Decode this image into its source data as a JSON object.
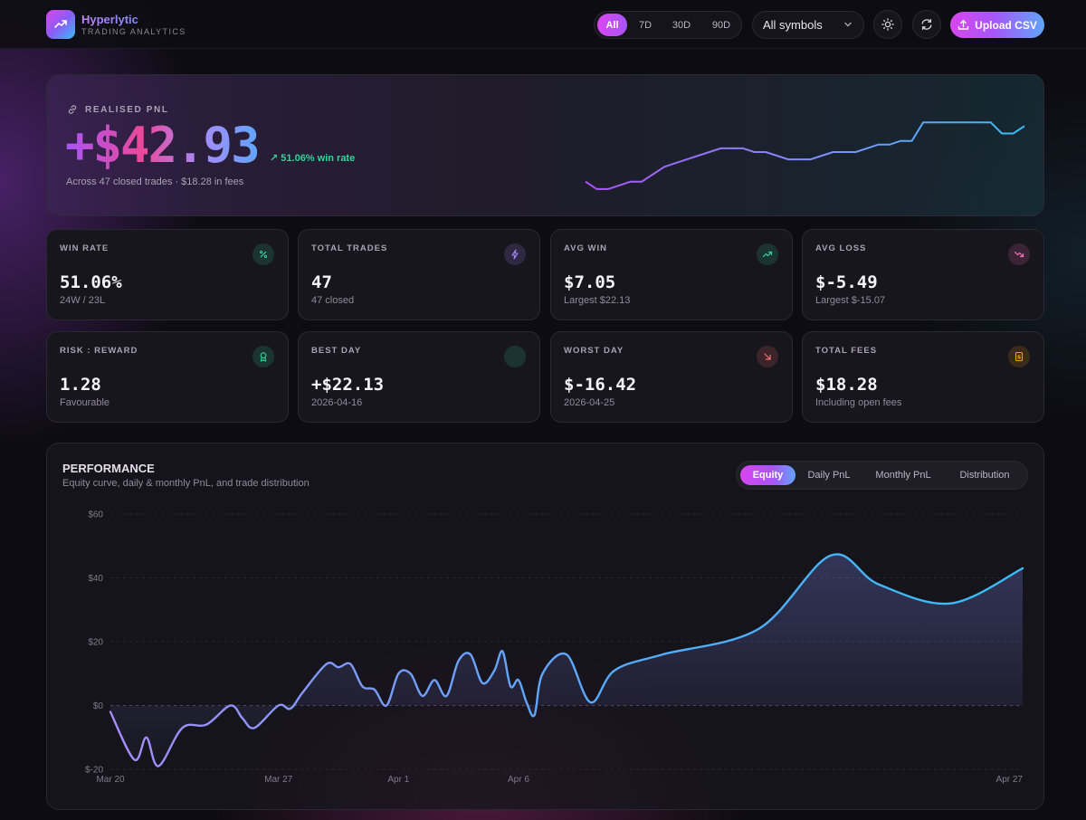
{
  "brand": {
    "name": "Hyperlytic",
    "subtitle": "TRADING ANALYTICS",
    "icon": "trend-up-icon"
  },
  "header": {
    "ranges": [
      "All",
      "7D",
      "30D",
      "90D"
    ],
    "active_range": "All",
    "symbol_select": "All symbols",
    "theme_icon": "sun-icon",
    "refresh_icon": "refresh-icon",
    "upload_label": "Upload CSV",
    "upload_icon": "upload-icon"
  },
  "hero": {
    "label": "REALISED PNL",
    "label_icon": "link-icon",
    "value": "+$42.93",
    "winrate": "51.06% win rate",
    "subtitle": "Across 47 closed trades · $18.28 in fees"
  },
  "stats": [
    {
      "label": "WIN RATE",
      "value": "51.06%",
      "sub": "24W / 23L",
      "icon": "percent-icon",
      "color": "#34d399"
    },
    {
      "label": "TOTAL TRADES",
      "value": "47",
      "sub": "47 closed",
      "icon": "bolt-icon",
      "color": "#a78bfa"
    },
    {
      "label": "AVG WIN",
      "value": "$7.05",
      "sub": "Largest $22.13",
      "icon": "trend-up-icon",
      "color": "#34d399"
    },
    {
      "label": "AVG LOSS",
      "value": "$-5.49",
      "sub": "Largest $-15.07",
      "icon": "trend-down-icon",
      "color": "#f472b6"
    },
    {
      "label": "RISK : REWARD",
      "value": "1.28",
      "sub": "Favourable",
      "icon": "award-icon",
      "color": "#34d399"
    },
    {
      "label": "BEST DAY",
      "value": "+$22.13",
      "sub": "2026-04-16",
      "icon": "flame-icon",
      "color": "#34d399"
    },
    {
      "label": "WORST DAY",
      "value": "$-16.42",
      "sub": "2026-04-25",
      "icon": "arrow-down-right-icon",
      "color": "#f87171"
    },
    {
      "label": "TOTAL FEES",
      "value": "$18.28",
      "sub": "Including open fees",
      "icon": "receipt-icon",
      "color": "#f59e0b"
    }
  ],
  "performance": {
    "title": "PERFORMANCE",
    "subtitle": "Equity curve, daily & monthly PnL, and trade distribution",
    "tabs": [
      "Equity",
      "Daily PnL",
      "Monthly PnL",
      "Distribution"
    ],
    "active_tab": "Equity"
  },
  "chart_data": [
    {
      "type": "line",
      "title": "",
      "values": [
        -5,
        -7,
        -7,
        -6,
        -5,
        -5,
        -3,
        -1,
        0,
        1,
        2,
        3,
        4,
        4,
        4,
        3,
        3,
        2,
        1,
        1,
        1,
        2,
        3,
        3,
        3,
        4,
        5,
        5,
        6,
        6,
        11,
        11,
        11,
        11,
        11,
        11,
        11,
        8,
        8,
        10
      ],
      "ylim": [
        -8,
        13
      ]
    },
    {
      "type": "line",
      "title": "",
      "xlabel": "",
      "ylabel": "",
      "xlim": [
        "Mar 20",
        "Apr 27"
      ],
      "ylim": [
        -20,
        60
      ],
      "x_ticks": [
        "Mar 20",
        "Mar 27",
        "Apr 1",
        "Apr 6",
        "Apr 27"
      ],
      "y_ticks": [
        "$60",
        "$40",
        "$20",
        "$0",
        "$-20"
      ],
      "series": [
        {
          "values": [
            {
              "x": "2026-03-20",
              "y": -2
            },
            {
              "x": "2026-03-21",
              "y": -17
            },
            {
              "x": "2026-03-21",
              "y": -10
            },
            {
              "x": "2026-03-22",
              "y": -19
            },
            {
              "x": "2026-03-23",
              "y": -7
            },
            {
              "x": "2026-03-24",
              "y": -6
            },
            {
              "x": "2026-03-25",
              "y": 0
            },
            {
              "x": "2026-03-25",
              "y": -4
            },
            {
              "x": "2026-03-26",
              "y": -7
            },
            {
              "x": "2026-03-27",
              "y": 0
            },
            {
              "x": "2026-03-27",
              "y": -1
            },
            {
              "x": "2026-03-28",
              "y": 4
            },
            {
              "x": "2026-03-29",
              "y": 13
            },
            {
              "x": "2026-03-29",
              "y": 12
            },
            {
              "x": "2026-03-30",
              "y": 13
            },
            {
              "x": "2026-03-30",
              "y": 6
            },
            {
              "x": "2026-03-31",
              "y": 5
            },
            {
              "x": "2026-03-31",
              "y": 0
            },
            {
              "x": "2026-04-01",
              "y": 10
            },
            {
              "x": "2026-04-01",
              "y": 10
            },
            {
              "x": "2026-04-02",
              "y": 3
            },
            {
              "x": "2026-04-02",
              "y": 8
            },
            {
              "x": "2026-04-03",
              "y": 3
            },
            {
              "x": "2026-04-03",
              "y": 14
            },
            {
              "x": "2026-04-04",
              "y": 16
            },
            {
              "x": "2026-04-04",
              "y": 7
            },
            {
              "x": "2026-04-05",
              "y": 11
            },
            {
              "x": "2026-04-05",
              "y": 17
            },
            {
              "x": "2026-04-05",
              "y": 6
            },
            {
              "x": "2026-04-06",
              "y": 8
            },
            {
              "x": "2026-04-06",
              "y": 1
            },
            {
              "x": "2026-04-06",
              "y": -3
            },
            {
              "x": "2026-04-07",
              "y": 10
            },
            {
              "x": "2026-04-08",
              "y": 16
            },
            {
              "x": "2026-04-09",
              "y": 1
            },
            {
              "x": "2026-04-10",
              "y": 11
            },
            {
              "x": "2026-04-12",
              "y": 16
            },
            {
              "x": "2026-04-16",
              "y": 24
            },
            {
              "x": "2026-04-19",
              "y": 47
            },
            {
              "x": "2026-04-21",
              "y": 38
            },
            {
              "x": "2026-04-24",
              "y": 32
            },
            {
              "x": "2026-04-27",
              "y": 43
            }
          ]
        }
      ]
    }
  ]
}
